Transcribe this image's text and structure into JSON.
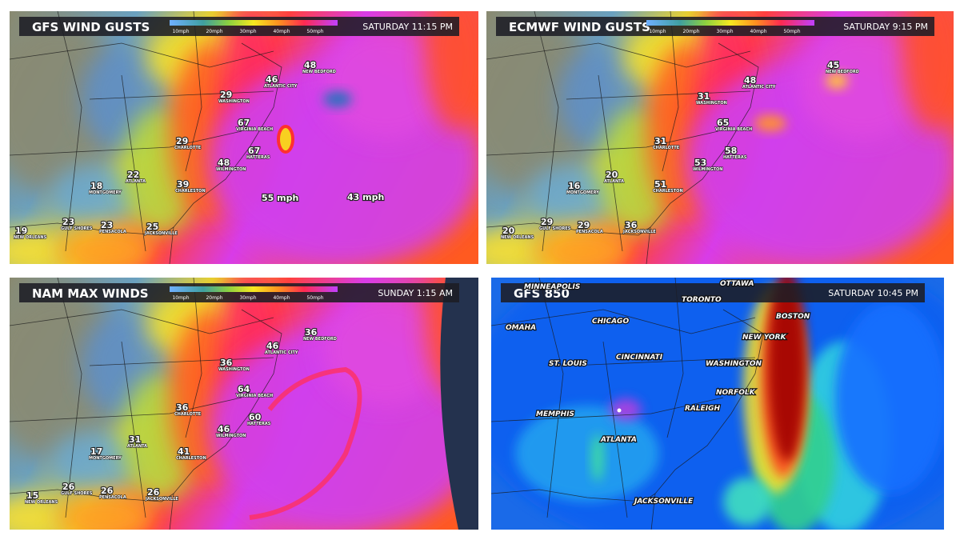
{
  "panels": [
    {
      "title": "GFS WIND GUSTS",
      "time": "SATURDAY  11:15 PM",
      "legend": [
        "10mph",
        "20mph",
        "30mph",
        "40mph",
        "50mph"
      ],
      "labels": [
        {
          "value": 48,
          "place": "NEW BEDFORD"
        },
        {
          "value": 46,
          "place": "ATLANTIC CITY"
        },
        {
          "value": 29,
          "place": "WASHINGTON"
        },
        {
          "value": 67,
          "place": "VIRGINIA BEACH"
        },
        {
          "value": 29,
          "place": "CHARLOTTE"
        },
        {
          "value": 67,
          "place": "HATTERAS"
        },
        {
          "value": 48,
          "place": "WILMINGTON"
        },
        {
          "value": 18,
          "place": "MONTGOMERY"
        },
        {
          "value": 22,
          "place": "ATLANTA"
        },
        {
          "value": 39,
          "place": "CHARLESTON"
        },
        {
          "value": "55 mph"
        },
        {
          "value": "43 mph"
        },
        {
          "value": 19,
          "place": "NEW ORLEANS"
        },
        {
          "value": 23,
          "place": "GULF SHORES"
        },
        {
          "value": 23,
          "place": "PENSACOLA"
        },
        {
          "value": 25,
          "place": "JACKSONVILLE"
        }
      ]
    },
    {
      "title": "ECMWF WIND GUSTS",
      "time": "SATURDAY  9:15 PM",
      "legend": [
        "10mph",
        "20mph",
        "30mph",
        "40mph",
        "50mph"
      ],
      "labels": [
        {
          "value": 45,
          "place": "NEW BEDFORD"
        },
        {
          "value": 48,
          "place": "ATLANTIC CITY"
        },
        {
          "value": 31,
          "place": "WASHINGTON"
        },
        {
          "value": 65,
          "place": "VIRGINIA BEACH"
        },
        {
          "value": 31,
          "place": "CHARLOTTE"
        },
        {
          "value": 58,
          "place": "HATTERAS"
        },
        {
          "value": 53,
          "place": "WILMINGTON"
        },
        {
          "value": 16,
          "place": "MONTGOMERY"
        },
        {
          "value": 20,
          "place": "ATLANTA"
        },
        {
          "value": 51,
          "place": "CHARLESTON"
        },
        {
          "value": 20,
          "place": "NEW ORLEANS"
        },
        {
          "value": 29,
          "place": "GULF SHORES"
        },
        {
          "value": 29,
          "place": "PENSACOLA"
        },
        {
          "value": 36,
          "place": "JACKSONVILLE"
        }
      ]
    },
    {
      "title": "NAM MAX WINDS",
      "time": "SUNDAY  1:15 AM",
      "legend": [
        "10mph",
        "20mph",
        "30mph",
        "40mph",
        "50mph"
      ],
      "labels": [
        {
          "value": 36,
          "place": "NEW BEDFORD"
        },
        {
          "value": 46,
          "place": "ATLANTIC CITY"
        },
        {
          "value": 36,
          "place": "WASHINGTON"
        },
        {
          "value": 64,
          "place": "VIRGINIA BEACH"
        },
        {
          "value": 36,
          "place": "CHARLOTTE"
        },
        {
          "value": 60,
          "place": "HATTERAS"
        },
        {
          "value": 46,
          "place": "WILMINGTON"
        },
        {
          "value": 17,
          "place": "MONTGOMERY"
        },
        {
          "value": 31,
          "place": "ATLANTA"
        },
        {
          "value": 41,
          "place": "CHARLESTON"
        },
        {
          "value": 15,
          "place": "NEW ORLEANS"
        },
        {
          "value": 26,
          "place": "GULF SHORES"
        },
        {
          "value": 26,
          "place": "PENSACOLA"
        },
        {
          "value": 26,
          "place": "JACKSONVILLE"
        }
      ]
    },
    {
      "title": "GFS 850",
      "time": "SATURDAY  10:45 PM",
      "cities": [
        "MINNEAPOLIS",
        "OTTAWA",
        "TORONTO",
        "BOSTON",
        "OMAHA",
        "CHICAGO",
        "NEW YORK",
        "CINCINNATI",
        "ST. LOUIS",
        "WASHINGTON",
        "NORFOLK",
        "MEMPHIS",
        "RALEIGH",
        "ATLANTA",
        "JACKSONVILLE"
      ]
    }
  ]
}
